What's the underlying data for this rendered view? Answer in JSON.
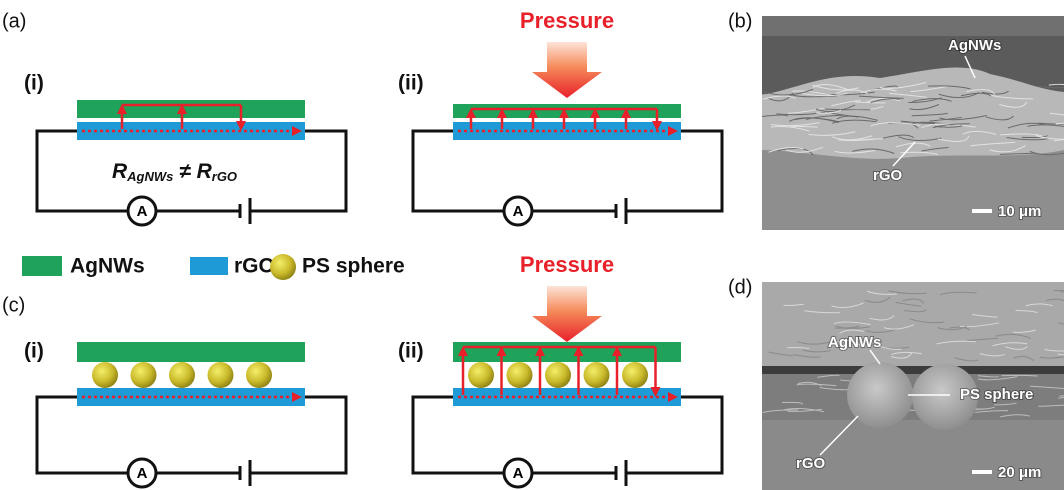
{
  "panels": {
    "a": "(a)",
    "b": "(b)",
    "c": "(c)",
    "d": "(d)"
  },
  "subpanels": {
    "a_i": "(i)",
    "a_ii": "(ii)",
    "c_i": "(i)",
    "c_ii": "(ii)"
  },
  "pressure": [
    "Pressure",
    "Pressure"
  ],
  "ammeter": [
    "A",
    "A",
    "A",
    "A"
  ],
  "formula": {
    "r1": "R",
    "sub1": "AgNWs",
    "neq": " ≠ ",
    "r2": "R",
    "sub2": "rGO"
  },
  "legend": [
    "AgNWs",
    "rGO",
    "PS sphere"
  ],
  "sem_b": {
    "top": "AgNWs",
    "bottom": "rGO",
    "scale": "10 μm"
  },
  "sem_d": {
    "top": "AgNWs",
    "sphere": "PS sphere",
    "bottom": "rGO",
    "scale": "20 μm"
  }
}
